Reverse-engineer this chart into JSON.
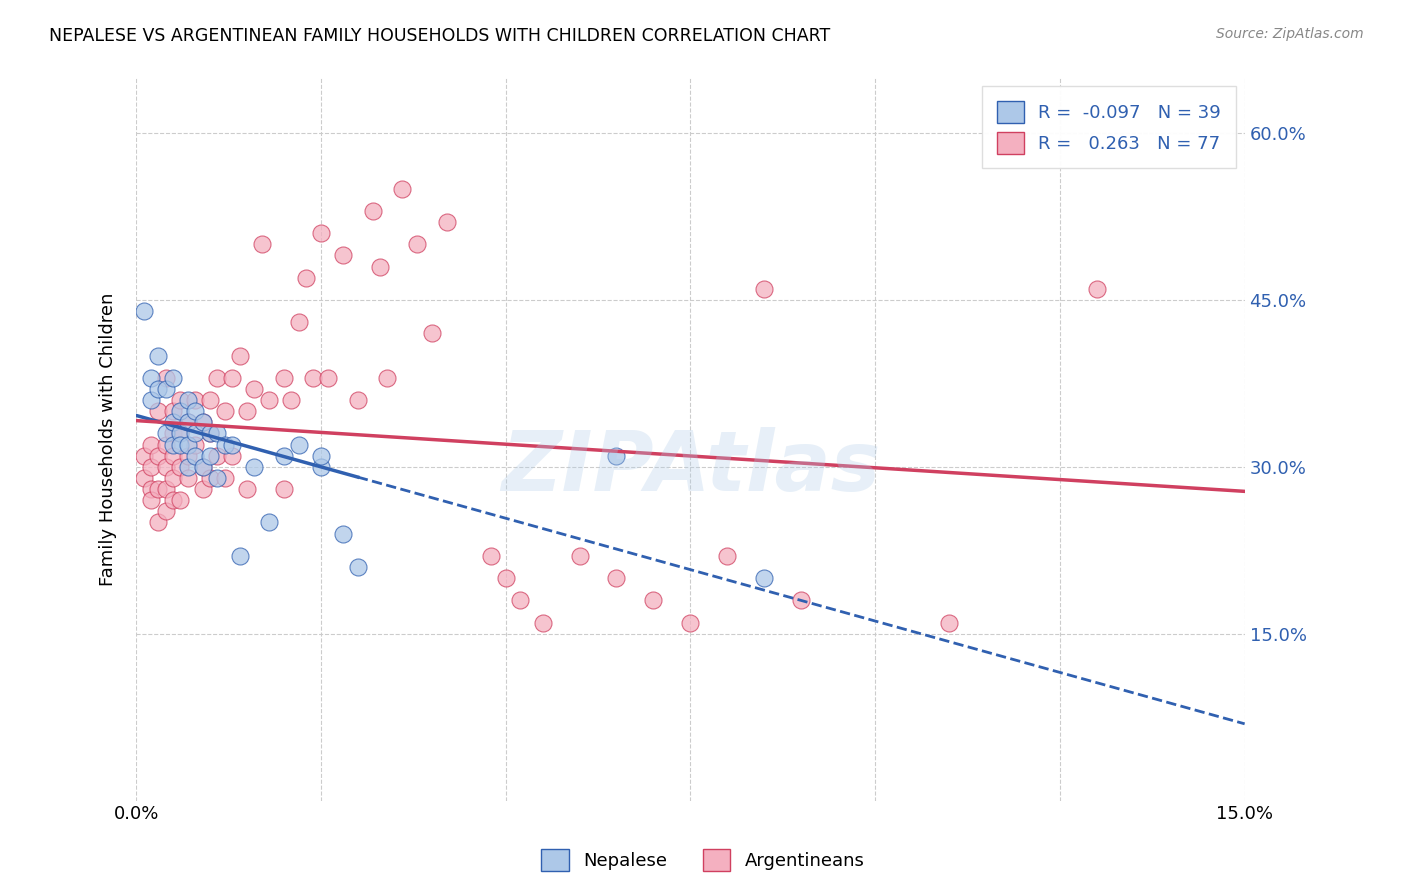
{
  "title": "NEPALESE VS ARGENTINEAN FAMILY HOUSEHOLDS WITH CHILDREN CORRELATION CHART",
  "source": "Source: ZipAtlas.com",
  "ylabel": "Family Households with Children",
  "watermark": "ZIPAtlas",
  "nepalese_R": -0.097,
  "nepalese_N": 39,
  "argentinean_R": 0.263,
  "argentinean_N": 77,
  "xlim": [
    0.0,
    0.15
  ],
  "ylim": [
    0.0,
    0.65
  ],
  "yticks": [
    0.15,
    0.3,
    0.45,
    0.6
  ],
  "ytick_labels": [
    "15.0%",
    "30.0%",
    "45.0%",
    "60.0%"
  ],
  "xticks": [
    0.0,
    0.025,
    0.05,
    0.075,
    0.1,
    0.125,
    0.15
  ],
  "xtick_labels": [
    "0.0%",
    "",
    "",
    "",
    "",
    "",
    "15.0%"
  ],
  "color_nepalese": "#adc8e8",
  "color_argentinean": "#f4b0c0",
  "line_color_nepalese": "#3060b0",
  "line_color_argentinean": "#d04060",
  "background_color": "#ffffff",
  "grid_color": "#cccccc",
  "nepalese_x": [
    0.001,
    0.002,
    0.002,
    0.003,
    0.003,
    0.004,
    0.004,
    0.005,
    0.005,
    0.005,
    0.006,
    0.006,
    0.006,
    0.007,
    0.007,
    0.007,
    0.007,
    0.008,
    0.008,
    0.008,
    0.009,
    0.009,
    0.01,
    0.01,
    0.011,
    0.011,
    0.012,
    0.013,
    0.014,
    0.016,
    0.018,
    0.02,
    0.022,
    0.025,
    0.025,
    0.028,
    0.03,
    0.065,
    0.085
  ],
  "nepalese_y": [
    0.44,
    0.36,
    0.38,
    0.37,
    0.4,
    0.33,
    0.37,
    0.34,
    0.32,
    0.38,
    0.35,
    0.33,
    0.32,
    0.36,
    0.34,
    0.32,
    0.3,
    0.35,
    0.33,
    0.31,
    0.34,
    0.3,
    0.33,
    0.31,
    0.33,
    0.29,
    0.32,
    0.32,
    0.22,
    0.3,
    0.25,
    0.31,
    0.32,
    0.3,
    0.31,
    0.24,
    0.21,
    0.31,
    0.2
  ],
  "argentinean_x": [
    0.001,
    0.001,
    0.002,
    0.002,
    0.002,
    0.002,
    0.003,
    0.003,
    0.003,
    0.003,
    0.004,
    0.004,
    0.004,
    0.004,
    0.004,
    0.005,
    0.005,
    0.005,
    0.005,
    0.005,
    0.006,
    0.006,
    0.006,
    0.006,
    0.007,
    0.007,
    0.007,
    0.008,
    0.008,
    0.009,
    0.009,
    0.009,
    0.01,
    0.01,
    0.01,
    0.011,
    0.011,
    0.012,
    0.012,
    0.013,
    0.013,
    0.014,
    0.015,
    0.015,
    0.016,
    0.017,
    0.018,
    0.02,
    0.02,
    0.021,
    0.022,
    0.023,
    0.024,
    0.025,
    0.026,
    0.028,
    0.03,
    0.032,
    0.033,
    0.034,
    0.036,
    0.038,
    0.04,
    0.042,
    0.048,
    0.05,
    0.052,
    0.055,
    0.06,
    0.065,
    0.07,
    0.075,
    0.08,
    0.085,
    0.09,
    0.11,
    0.13
  ],
  "argentinean_y": [
    0.29,
    0.31,
    0.28,
    0.32,
    0.27,
    0.3,
    0.31,
    0.28,
    0.35,
    0.25,
    0.32,
    0.28,
    0.3,
    0.26,
    0.38,
    0.29,
    0.31,
    0.27,
    0.33,
    0.35,
    0.3,
    0.33,
    0.27,
    0.36,
    0.31,
    0.29,
    0.34,
    0.32,
    0.36,
    0.3,
    0.34,
    0.28,
    0.33,
    0.36,
    0.29,
    0.38,
    0.31,
    0.35,
    0.29,
    0.38,
    0.31,
    0.4,
    0.35,
    0.28,
    0.37,
    0.5,
    0.36,
    0.38,
    0.28,
    0.36,
    0.43,
    0.47,
    0.38,
    0.51,
    0.38,
    0.49,
    0.36,
    0.53,
    0.48,
    0.38,
    0.55,
    0.5,
    0.42,
    0.52,
    0.22,
    0.2,
    0.18,
    0.16,
    0.22,
    0.2,
    0.18,
    0.16,
    0.22,
    0.46,
    0.18,
    0.16,
    0.46
  ]
}
